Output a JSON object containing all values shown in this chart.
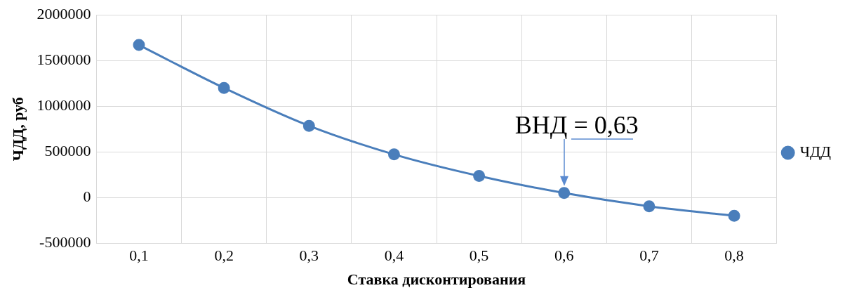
{
  "chart_data": {
    "type": "line",
    "xlabel": "Ставка дисконтирования",
    "ylabel": "ЧДД, руб",
    "categories": [
      "0,1",
      "0,2",
      "0,3",
      "0,4",
      "0,5",
      "0,6",
      "0,7",
      "0,8"
    ],
    "series": [
      {
        "name": "ЧДД",
        "color": "#4a7ebb",
        "values": [
          1670000,
          1200000,
          785000,
          472000,
          236000,
          49000,
          -97000,
          -201000
        ]
      }
    ],
    "ylim": [
      -500000,
      2000000
    ],
    "yticks": [
      -500000,
      0,
      500000,
      1000000,
      1500000,
      2000000
    ],
    "annotations": [
      "ВНД = 0,63"
    ],
    "grid": true,
    "legend": "right",
    "marker": "circle",
    "line_style": "solid"
  }
}
